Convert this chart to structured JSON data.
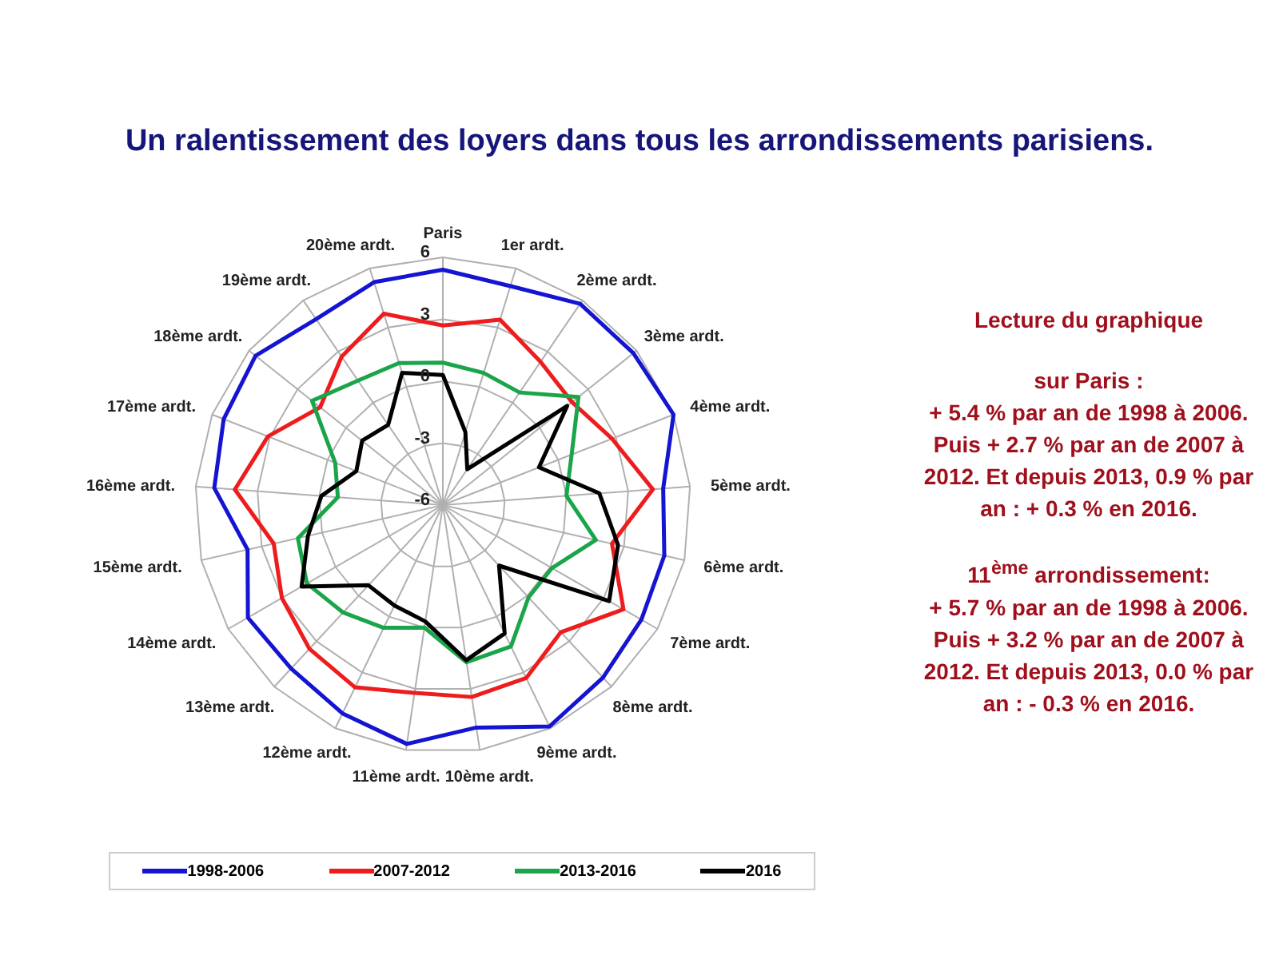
{
  "chart_data": {
    "type": "radar",
    "title": "Un ralentissement des loyers dans tous les arrondissements parisiens.",
    "categories": [
      "Paris",
      "1er ardt.",
      "2ème ardt.",
      "3ème ardt.",
      "4ème ardt.",
      "5ème ardt.",
      "6ème ardt.",
      "7ème ardt.",
      "8ème ardt.",
      "9ème ardt.",
      "10ème ardt.",
      "11ème ardt.",
      "12ème ardt.",
      "13ème ardt.",
      "14ème ardt.",
      "15ème ardt.",
      "16ème ardt.",
      "17ème ardt.",
      "18ème ardt.",
      "19ème ardt.",
      "20ème ardt."
    ],
    "series": [
      {
        "name": "1998-2006",
        "color": "#1414d2",
        "values": [
          5.4,
          5.1,
          5.8,
          5.8,
          6.0,
          4.7,
          5.0,
          5.1,
          5.4,
          5.9,
          4.9,
          5.7,
          5.2,
          4.8,
          4.9,
          3.7,
          5.1,
          5.4,
          5.6,
          4.9,
          5.3
        ]
      },
      {
        "name": "2007-2012",
        "color": "#ee1c1c",
        "values": [
          2.7,
          3.4,
          2.4,
          2.0,
          2.8,
          4.2,
          2.4,
          4.1,
          2.4,
          3.3,
          3.4,
          3.2,
          3.8,
          3.5,
          3.0,
          2.4,
          4.1,
          3.1,
          1.6,
          2.7,
          3.7
        ]
      },
      {
        "name": "2013-2016",
        "color": "#1ba54b",
        "values": [
          0.9,
          0.7,
          0.6,
          2.4,
          0.7,
          0.0,
          1.6,
          0.1,
          0.1,
          1.6,
          1.7,
          0.0,
          0.6,
          1.1,
          1.6,
          1.2,
          -0.9,
          -0.4,
          2.1,
          1.3,
          1.2
        ]
      },
      {
        "name": "2016",
        "color": "#000000",
        "values": [
          0.3,
          -2.3,
          -3.9,
          1.7,
          -1.0,
          1.6,
          2.7,
          3.3,
          -2.0,
          0.9,
          1.6,
          -0.3,
          -0.6,
          -0.7,
          1.9,
          0.7,
          -0.1,
          -1.5,
          -1.0,
          -1.3,
          0.7
        ]
      }
    ],
    "ylim": [
      -6,
      6
    ],
    "yticks": [
      -6,
      -3,
      0,
      3,
      6
    ],
    "grid": true,
    "legend": "bottom",
    "marker": "none",
    "line_style": "solid",
    "annotations": [
      "Lecture du graphique",
      "sur Paris :",
      "+ 5.4 % par an de 1998 à 2006. Puis + 2.7 % par an de 2007 à 2012. Et depuis 2013, 0.9 % par an : + 0.3 % en 2016.",
      "11$^{ème}$ arrondissement:",
      "+ 5.7 % par an de 1998 à 2006. Puis + 3.2 % par an de 2007 à 2012. Et depuis 2013, 0.0 % par an : - 0.3 % en 2016."
    ]
  }
}
